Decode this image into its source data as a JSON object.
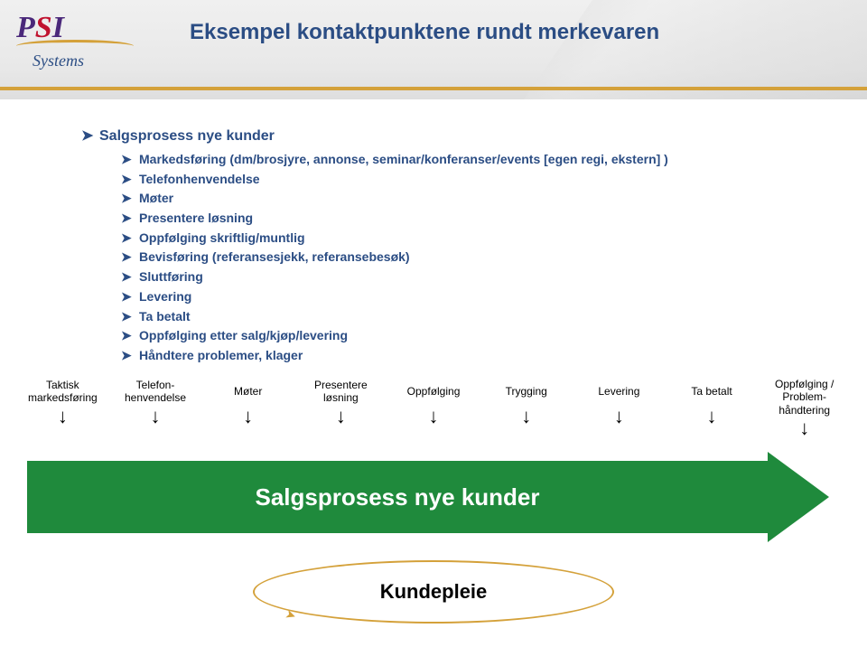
{
  "header": {
    "logo_main_1": "P",
    "logo_main_2": "S",
    "logo_main_3": "I",
    "logo_sub": "Systems",
    "title": "Eksempel kontaktpunktene rundt merkevaren"
  },
  "colors": {
    "heading": "#2b4d84",
    "gold": "#d4a13a",
    "green": "#1f8a3c",
    "logo_purple": "#4a287a",
    "logo_red": "#c0122f"
  },
  "bullets": {
    "top": "Salgsprosess nye kunder",
    "items": [
      "Markedsføring (dm/brosjyre, annonse, seminar/konferanser/events [egen regi, ekstern] )",
      "Telefonhenvendelse",
      "Møter",
      "Presentere løsning",
      "Oppfølging skriftlig/muntlig",
      "Bevisføring (referansesjekk, referansebesøk)",
      "Sluttføring",
      "Levering",
      "Ta betalt",
      "Oppfølging etter salg/kjøp/levering",
      "Håndtere problemer, klager"
    ]
  },
  "process": {
    "steps": [
      {
        "label_line1": "Taktisk",
        "label_line2": "markedsføring"
      },
      {
        "label_line1": "Telefon-",
        "label_line2": "henvendelse"
      },
      {
        "label_line1": "Møter",
        "label_line2": ""
      },
      {
        "label_line1": "Presentere",
        "label_line2": "løsning"
      },
      {
        "label_line1": "Oppfølging",
        "label_line2": ""
      },
      {
        "label_line1": "Trygging",
        "label_line2": ""
      },
      {
        "label_line1": "Levering",
        "label_line2": ""
      },
      {
        "label_line1": "Ta betalt",
        "label_line2": ""
      },
      {
        "label_line1": "Oppfølging /",
        "label_line2": "Problem-",
        "label_line3": "håndtering"
      }
    ],
    "arrow_text": "Salgsprosess nye kunder",
    "oval_text": "Kundepleie"
  }
}
